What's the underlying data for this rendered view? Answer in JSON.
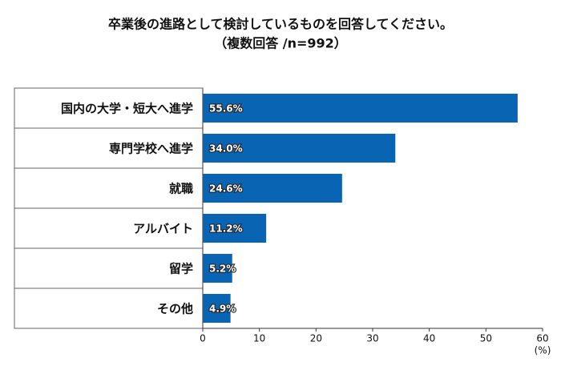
{
  "chart_data": {
    "type": "bar",
    "orientation": "horizontal",
    "title": "卒業後の進路として検討しているものを回答してください。",
    "subtitle": "（複数回答 /n=992）",
    "categories": [
      "国内の大学・短大へ進学",
      "専門学校へ進学",
      "就職",
      "アルバイト",
      "留学",
      "その他"
    ],
    "values": [
      55.6,
      34.0,
      24.6,
      11.2,
      5.2,
      4.9
    ],
    "value_labels": [
      "55.6%",
      "34.0%",
      "24.6%",
      "11.2%",
      "5.2%",
      "4.9%"
    ],
    "color": "#0a64b4",
    "xlim": [
      0,
      60
    ],
    "xticks": [
      0,
      10,
      20,
      30,
      40,
      50,
      60
    ],
    "xlabel": "(%)"
  }
}
